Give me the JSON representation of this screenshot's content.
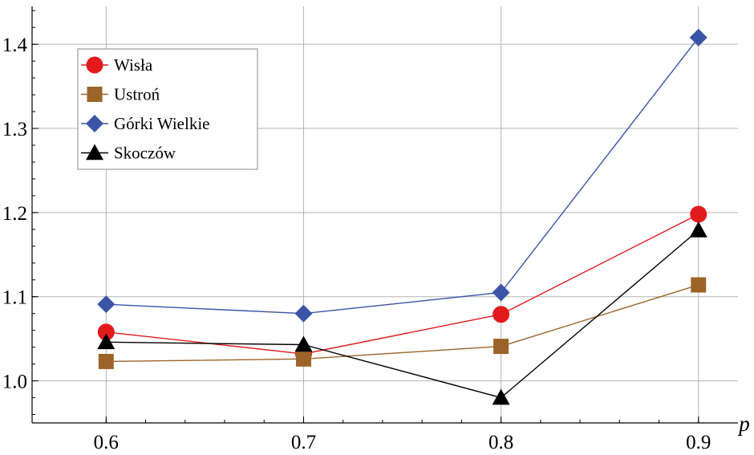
{
  "chart_data": {
    "type": "line",
    "xlabel": "p",
    "ylabel": "",
    "title": "",
    "x": [
      0.6,
      0.7,
      0.8,
      0.9
    ],
    "x_ticks": [
      "0.6",
      "0.7",
      "0.8",
      "0.9"
    ],
    "y_ticks": [
      "1.0",
      "1.1",
      "1.2",
      "1.3",
      "1.4"
    ],
    "xlim": [
      0.5625,
      0.92
    ],
    "ylim": [
      0.95,
      1.445
    ],
    "grid": true,
    "legend_position": "top-left",
    "series": [
      {
        "name": "Wisła",
        "values": [
          1.058,
          1.032,
          1.079,
          1.198
        ],
        "color": "#e31a1c",
        "marker": "circle"
      },
      {
        "name": "Ustroń",
        "values": [
          1.023,
          1.026,
          1.041,
          1.114
        ],
        "color": "#9c6428",
        "marker": "square"
      },
      {
        "name": "Górki Wielkie",
        "values": [
          1.091,
          1.08,
          1.105,
          1.408
        ],
        "color": "#3a55a8",
        "marker": "diamond"
      },
      {
        "name": "Skoczów",
        "values": [
          1.046,
          1.043,
          0.98,
          1.179
        ],
        "color": "#000000",
        "marker": "triangle"
      }
    ]
  }
}
